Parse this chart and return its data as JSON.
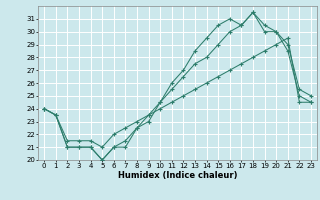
{
  "xlabel": "Humidex (Indice chaleur)",
  "xlim": [
    -0.5,
    23.5
  ],
  "ylim": [
    20,
    32
  ],
  "yticks": [
    20,
    21,
    22,
    23,
    24,
    25,
    26,
    27,
    28,
    29,
    30,
    31
  ],
  "xticks": [
    0,
    1,
    2,
    3,
    4,
    5,
    6,
    7,
    8,
    9,
    10,
    11,
    12,
    13,
    14,
    15,
    16,
    17,
    18,
    19,
    20,
    21,
    22,
    23
  ],
  "bg_color": "#cce8ec",
  "grid_color": "#ffffff",
  "line_color": "#2d7d6b",
  "line1_x": [
    0,
    1,
    2,
    3,
    4,
    5,
    6,
    7,
    8,
    9,
    10,
    11,
    12,
    13,
    14,
    15,
    16,
    17,
    18,
    19,
    20,
    21,
    22,
    23
  ],
  "line1_y": [
    24.0,
    23.5,
    21.0,
    21.0,
    21.0,
    20.0,
    21.0,
    21.0,
    22.5,
    23.0,
    24.5,
    26.0,
    27.0,
    28.5,
    29.5,
    30.5,
    31.0,
    30.5,
    31.5,
    30.5,
    30.0,
    29.0,
    25.5,
    25.0
  ],
  "line2_x": [
    0,
    1,
    2,
    3,
    4,
    5,
    6,
    7,
    8,
    9,
    10,
    11,
    12,
    13,
    14,
    15,
    16,
    17,
    18,
    19,
    20,
    21,
    22,
    23
  ],
  "line2_y": [
    24.0,
    23.5,
    21.0,
    21.0,
    21.0,
    20.0,
    21.0,
    21.5,
    22.5,
    23.5,
    24.5,
    25.5,
    26.5,
    27.5,
    28.0,
    29.0,
    30.0,
    30.5,
    31.5,
    30.0,
    30.0,
    28.5,
    25.0,
    24.5
  ],
  "line3_x": [
    0,
    1,
    2,
    3,
    4,
    5,
    6,
    7,
    8,
    9,
    10,
    11,
    12,
    13,
    14,
    15,
    16,
    17,
    18,
    19,
    20,
    21,
    22,
    23
  ],
  "line3_y": [
    24.0,
    23.5,
    21.5,
    21.5,
    21.5,
    21.0,
    22.0,
    22.5,
    23.0,
    23.5,
    24.0,
    24.5,
    25.0,
    25.5,
    26.0,
    26.5,
    27.0,
    27.5,
    28.0,
    28.5,
    29.0,
    29.5,
    24.5,
    24.5
  ]
}
